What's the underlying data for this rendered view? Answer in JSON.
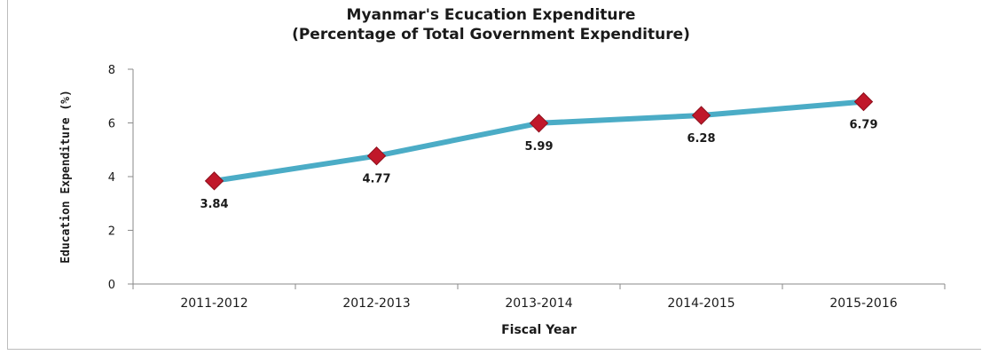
{
  "chart_data": {
    "type": "line",
    "title": "Myanmar's Ecucation Expenditure",
    "subtitle": "(Percentage of Total Government Expenditure)",
    "xlabel": "Fiscal Year",
    "ylabel": "Education Expenditure (%)",
    "categories": [
      "2011-2012",
      "2012-2013",
      "2013-2014",
      "2014-2015",
      "2015-2016"
    ],
    "values": [
      3.84,
      4.77,
      5.99,
      6.28,
      6.79
    ],
    "data_labels": [
      "3.84",
      "4.77",
      "5.99",
      "6.28",
      "6.79"
    ],
    "ylim": [
      0,
      8
    ],
    "yticks": [
      0,
      2,
      4,
      6,
      8
    ],
    "grid": false,
    "legend": "none",
    "colors": {
      "line": "#4bacc6",
      "marker": "#c0182a",
      "marker_edge": "#8c0f1c"
    }
  }
}
